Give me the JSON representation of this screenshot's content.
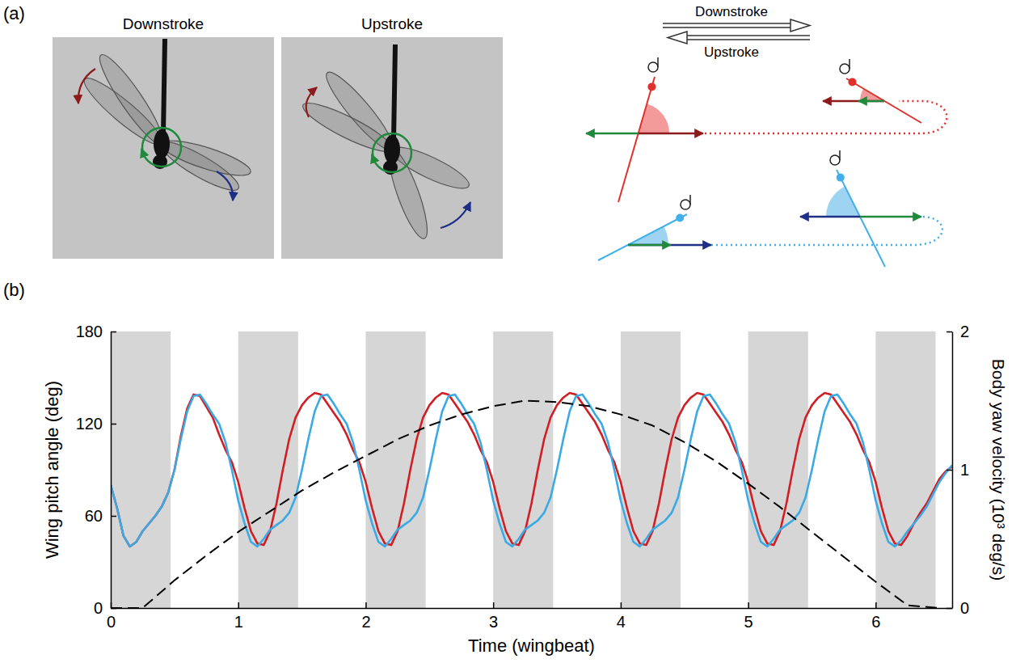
{
  "panel_a": {
    "label": "(a)",
    "photo_titles": [
      "Downstroke",
      "Upstroke"
    ],
    "diagram_labels": [
      "Downstroke",
      "Upstroke"
    ]
  },
  "chart_data": {
    "type": "line",
    "panel_label": "(b)",
    "x_label": "Time (wingbeat)",
    "y_label": "Wing pitch angle (deg)",
    "y2_label": "Body yaw velocity (10³ deg/s)",
    "xlim": [
      0,
      6.6
    ],
    "xticks": [
      0,
      1,
      2,
      3,
      4,
      5,
      6
    ],
    "ylim": [
      0,
      180
    ],
    "yticks": [
      0,
      60,
      120,
      180
    ],
    "y2lim": [
      0,
      2
    ],
    "y2ticks": [
      0,
      1,
      2
    ],
    "bands": [
      [
        0,
        0.47
      ],
      [
        1,
        1.47
      ],
      [
        2,
        2.47
      ],
      [
        3,
        3.47
      ],
      [
        4,
        4.47
      ],
      [
        5,
        5.47
      ],
      [
        6,
        6.47
      ]
    ],
    "x": [
      0,
      0.05,
      0.1,
      0.15,
      0.2,
      0.25,
      0.3,
      0.35,
      0.4,
      0.45,
      0.5,
      0.55,
      0.6,
      0.65,
      0.7,
      0.75,
      0.8,
      0.85,
      0.9,
      0.95,
      1,
      1.05,
      1.1,
      1.15,
      1.2,
      1.25,
      1.3,
      1.35,
      1.4,
      1.45,
      1.5,
      1.55,
      1.6,
      1.65,
      1.7,
      1.75,
      1.8,
      1.85,
      1.9,
      1.95,
      2,
      2.05,
      2.1,
      2.15,
      2.2,
      2.25,
      2.3,
      2.35,
      2.4,
      2.45,
      2.5,
      2.55,
      2.6,
      2.65,
      2.7,
      2.75,
      2.8,
      2.85,
      2.9,
      2.95,
      3,
      3.05,
      3.1,
      3.15,
      3.2,
      3.25,
      3.3,
      3.35,
      3.4,
      3.45,
      3.5,
      3.55,
      3.6,
      3.65,
      3.7,
      3.75,
      3.8,
      3.85,
      3.9,
      3.95,
      4,
      4.05,
      4.1,
      4.15,
      4.2,
      4.25,
      4.3,
      4.35,
      4.4,
      4.45,
      4.5,
      4.55,
      4.6,
      4.65,
      4.7,
      4.75,
      4.8,
      4.85,
      4.9,
      4.95,
      5,
      5.05,
      5.1,
      5.15,
      5.2,
      5.25,
      5.3,
      5.35,
      5.4,
      5.45,
      5.5,
      5.55,
      5.6,
      5.65,
      5.7,
      5.75,
      5.8,
      5.85,
      5.9,
      5.95,
      6,
      6.05,
      6.1,
      6.15,
      6.2,
      6.25,
      6.3,
      6.35,
      6.4,
      6.45,
      6.5,
      6.55,
      6.6
    ],
    "series": [
      {
        "color": "#d01f24",
        "line_style": "solid",
        "values": [
          80,
          65,
          47,
          40,
          43,
          50,
          55,
          60,
          66,
          75,
          90,
          112,
          130,
          139,
          138,
          131,
          124,
          113,
          103,
          95,
          82,
          65,
          50,
          42,
          41,
          50,
          68,
          90,
          110,
          124,
          132,
          137,
          140,
          139,
          133,
          127,
          121,
          113,
          103,
          95,
          82,
          65,
          50,
          42,
          41,
          50,
          68,
          90,
          110,
          124,
          132,
          137,
          140,
          139,
          133,
          127,
          121,
          113,
          103,
          95,
          82,
          65,
          50,
          42,
          41,
          50,
          68,
          90,
          110,
          124,
          132,
          137,
          140,
          139,
          133,
          127,
          121,
          113,
          103,
          95,
          82,
          65,
          50,
          42,
          41,
          50,
          68,
          90,
          110,
          124,
          132,
          137,
          140,
          139,
          133,
          127,
          121,
          113,
          103,
          95,
          82,
          65,
          50,
          42,
          41,
          50,
          68,
          90,
          110,
          124,
          132,
          137,
          140,
          139,
          133,
          127,
          121,
          113,
          103,
          95,
          82,
          65,
          50,
          42,
          41,
          47,
          55,
          62,
          68,
          76,
          84,
          89,
          92
        ]
      },
      {
        "color": "#3ba9e6",
        "line_style": "solid",
        "values": [
          80,
          65,
          47,
          40,
          43,
          50,
          55,
          60,
          66,
          75,
          90,
          110,
          128,
          138,
          139,
          133,
          126,
          120,
          108,
          90,
          70,
          55,
          43,
          40,
          45,
          51,
          54,
          57,
          62,
          72,
          90,
          110,
          128,
          138,
          139,
          133,
          126,
          120,
          108,
          90,
          70,
          55,
          43,
          40,
          45,
          51,
          54,
          57,
          62,
          72,
          90,
          110,
          128,
          138,
          139,
          133,
          126,
          120,
          108,
          90,
          70,
          55,
          43,
          40,
          45,
          51,
          54,
          57,
          62,
          72,
          90,
          110,
          128,
          138,
          139,
          133,
          126,
          120,
          108,
          90,
          70,
          55,
          43,
          40,
          45,
          51,
          54,
          57,
          62,
          72,
          90,
          110,
          128,
          138,
          139,
          133,
          126,
          120,
          108,
          90,
          70,
          55,
          43,
          40,
          45,
          51,
          54,
          57,
          62,
          72,
          90,
          110,
          128,
          138,
          139,
          133,
          126,
          120,
          108,
          90,
          70,
          55,
          43,
          40,
          44,
          50,
          55,
          60,
          66,
          74,
          82,
          88,
          93
        ]
      },
      {
        "color": "#000000",
        "line_style": "dashed",
        "axis": "y2",
        "x": [
          0,
          0.25,
          0.5,
          0.75,
          1,
          1.25,
          1.5,
          1.75,
          2,
          2.25,
          2.5,
          2.75,
          3,
          3.25,
          3.5,
          3.75,
          4,
          4.25,
          4.5,
          4.75,
          5,
          5.25,
          5.5,
          5.75,
          6,
          6.25,
          6.5
        ],
        "values": [
          0,
          0,
          0.2,
          0.38,
          0.55,
          0.7,
          0.85,
          0.98,
          1.1,
          1.22,
          1.32,
          1.4,
          1.46,
          1.5,
          1.49,
          1.46,
          1.4,
          1.32,
          1.2,
          1.06,
          0.9,
          0.73,
          0.55,
          0.37,
          0.19,
          0.02,
          0
        ]
      }
    ]
  }
}
